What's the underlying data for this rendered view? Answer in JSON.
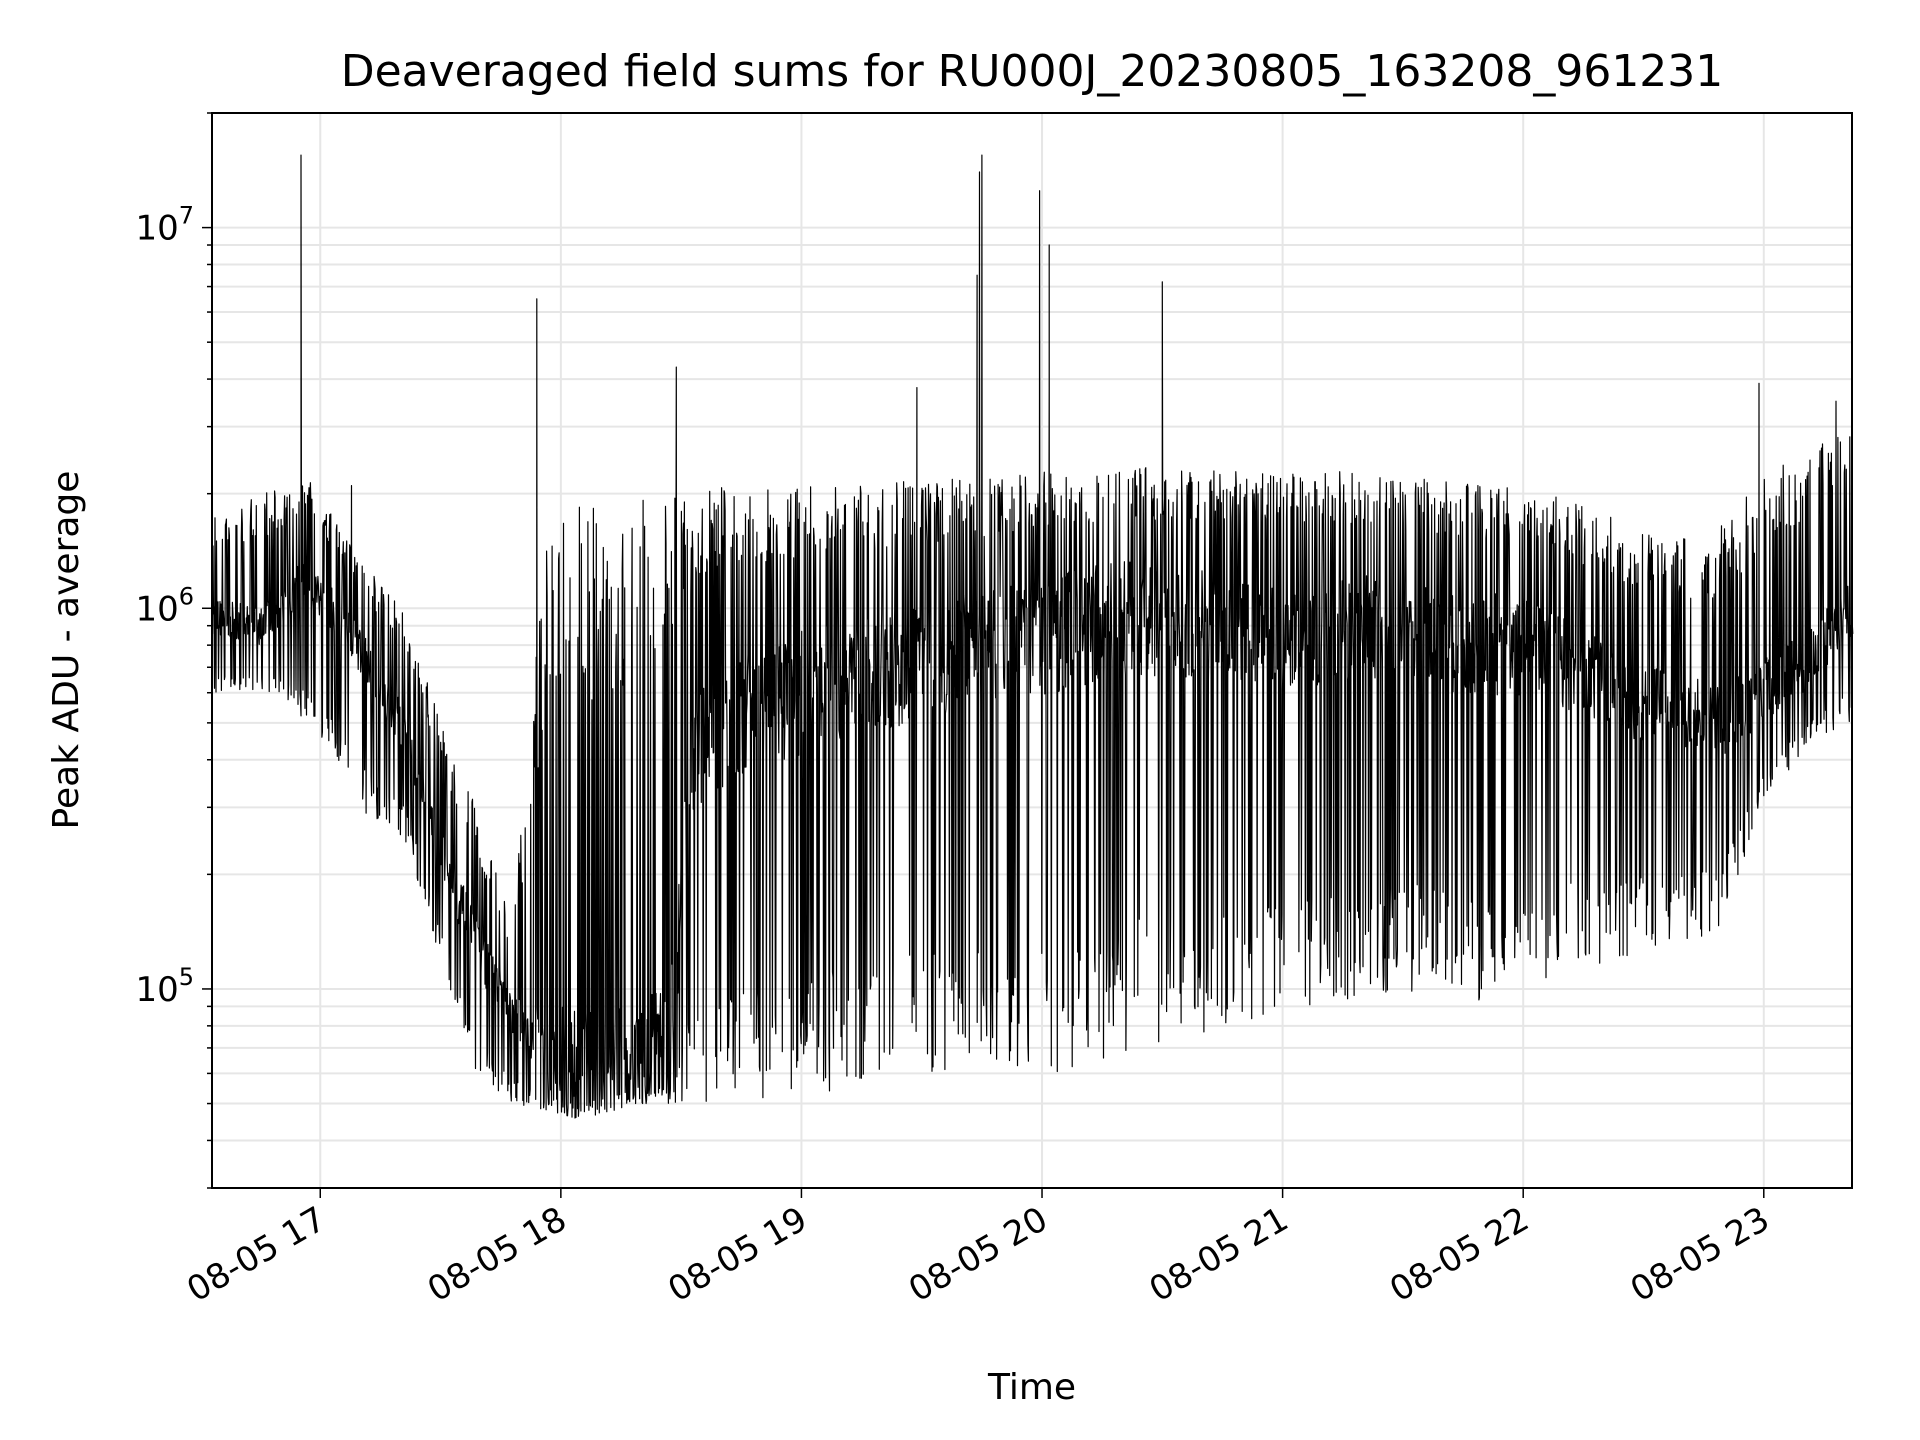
{
  "chart_data": {
    "type": "line",
    "title": "Deaveraged field sums for RU000J_20230805_163208_961231",
    "xlabel": "Time",
    "ylabel": "Peak ADU - average",
    "yscale": "log",
    "grid": true,
    "x_start": "08-05 16:33",
    "x_end": "08-05 23:22",
    "ylim": [
      30000,
      20000000
    ],
    "x_ticks": [
      "08-05 17",
      "08-05 18",
      "08-05 19",
      "08-05 20",
      "08-05 21",
      "08-05 22",
      "08-05 23"
    ],
    "y_ticks": [
      {
        "base": "10",
        "exp": "5",
        "value": 100000
      },
      {
        "base": "10",
        "exp": "6",
        "value": 1000000
      },
      {
        "base": "10",
        "exp": "7",
        "value": 10000000
      }
    ],
    "series": [
      {
        "color": "#000000",
        "x_hours": [
          16.55,
          16.75,
          16.95,
          17.15,
          17.35,
          17.5,
          17.65,
          17.8,
          17.95,
          18.1,
          18.3,
          18.45,
          18.55,
          18.7,
          18.85,
          19.0,
          19.2,
          19.4,
          19.6,
          19.8,
          20.0,
          20.2,
          20.4,
          20.6,
          20.8,
          21.0,
          21.2,
          21.4,
          21.6,
          21.8,
          22.0,
          22.2,
          22.4,
          22.6,
          22.8,
          23.0,
          23.2,
          23.37
        ],
        "baseline": [
          950000,
          900000,
          1200000,
          800000,
          480000,
          230000,
          130000,
          85000,
          65000,
          62000,
          65000,
          70000,
          400000,
          500000,
          550000,
          600000,
          650000,
          700000,
          750000,
          800000,
          850000,
          900000,
          950000,
          900000,
          900000,
          850000,
          850000,
          900000,
          850000,
          800000,
          800000,
          700000,
          600000,
          550000,
          500000,
          600000,
          750000,
          1000000
        ],
        "upper": [
          1800000,
          2000000,
          2200000,
          1400000,
          1000000,
          500000,
          300000,
          150000,
          1800000,
          1900000,
          1900000,
          2000000,
          2000000,
          2100000,
          2100000,
          2100000,
          2100000,
          2150000,
          2200000,
          2200000,
          2300000,
          2300000,
          2350000,
          2300000,
          2300000,
          2300000,
          2300000,
          2250000,
          2200000,
          2150000,
          2100000,
          1900000,
          1700000,
          1500000,
          1600000,
          2200000,
          2700000,
          3000000
        ],
        "lower": [
          600000,
          600000,
          500000,
          300000,
          250000,
          120000,
          60000,
          50000,
          48000,
          45000,
          50000,
          50000,
          50000,
          50000,
          50000,
          50000,
          55000,
          60000,
          60000,
          60000,
          60000,
          60000,
          70000,
          75000,
          80000,
          85000,
          90000,
          95000,
          100000,
          90000,
          100000,
          110000,
          120000,
          130000,
          140000,
          300000,
          450000,
          500000
        ],
        "spikes": [
          {
            "x_hours": 16.92,
            "value": 15500000
          },
          {
            "x_hours": 17.13,
            "value": 2100000
          },
          {
            "x_hours": 17.9,
            "value": 6500000
          },
          {
            "x_hours": 18.48,
            "value": 4300000
          },
          {
            "x_hours": 19.48,
            "value": 3800000
          },
          {
            "x_hours": 19.73,
            "value": 7500000
          },
          {
            "x_hours": 19.74,
            "value": 14000000
          },
          {
            "x_hours": 19.75,
            "value": 15500000
          },
          {
            "x_hours": 19.99,
            "value": 12500000
          },
          {
            "x_hours": 20.03,
            "value": 9000000
          },
          {
            "x_hours": 20.03,
            "value": 3800000
          },
          {
            "x_hours": 20.5,
            "value": 7200000
          },
          {
            "x_hours": 22.98,
            "value": 3900000
          },
          {
            "x_hours": 23.3,
            "value": 3500000
          }
        ]
      }
    ]
  }
}
